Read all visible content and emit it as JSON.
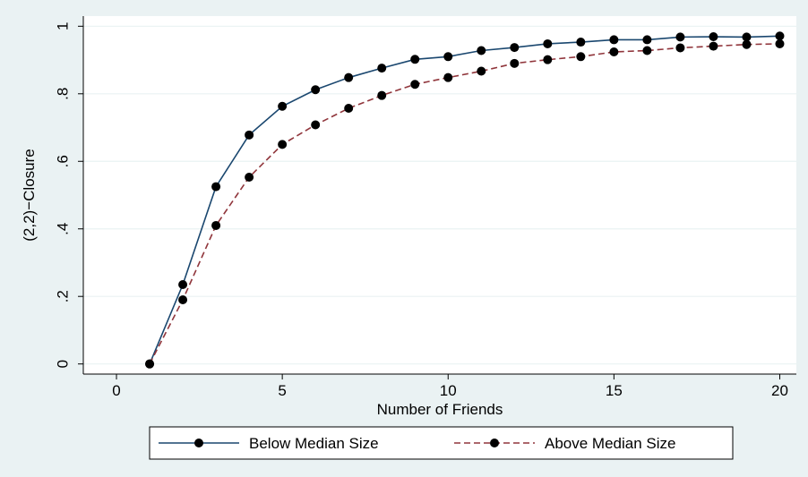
{
  "chart_data": {
    "type": "line",
    "title": "",
    "xlabel": "Number of Friends",
    "ylabel": "(2,2)−Closure",
    "xlim": [
      -1,
      20.5
    ],
    "ylim": [
      -0.03,
      1.03
    ],
    "xticks": [
      0,
      5,
      10,
      15,
      20
    ],
    "xtick_labels": [
      "0",
      "5",
      "10",
      "15",
      "20"
    ],
    "yticks": [
      0,
      0.2,
      0.4,
      0.6,
      0.8,
      1
    ],
    "ytick_labels": [
      "0",
      ".2",
      ".4",
      ".6",
      ".8",
      "1"
    ],
    "grid": true,
    "legend_position": "bottom",
    "x": [
      1,
      2,
      3,
      4,
      5,
      6,
      7,
      8,
      9,
      10,
      11,
      12,
      13,
      14,
      15,
      16,
      17,
      18,
      19,
      20
    ],
    "series": [
      {
        "name": "Below Median Size",
        "color": "#1a476f",
        "line_style": "solid",
        "values": [
          0.0,
          0.235,
          0.525,
          0.678,
          0.763,
          0.812,
          0.848,
          0.876,
          0.902,
          0.91,
          0.928,
          0.937,
          0.948,
          0.953,
          0.96,
          0.96,
          0.968,
          0.969,
          0.968,
          0.971
        ]
      },
      {
        "name": "Above Median Size",
        "color": "#90353b",
        "line_style": "dashed",
        "values": [
          0.0,
          0.19,
          0.41,
          0.553,
          0.65,
          0.708,
          0.757,
          0.795,
          0.828,
          0.848,
          0.867,
          0.89,
          0.901,
          0.91,
          0.924,
          0.928,
          0.936,
          0.941,
          0.946,
          0.948
        ]
      }
    ]
  }
}
